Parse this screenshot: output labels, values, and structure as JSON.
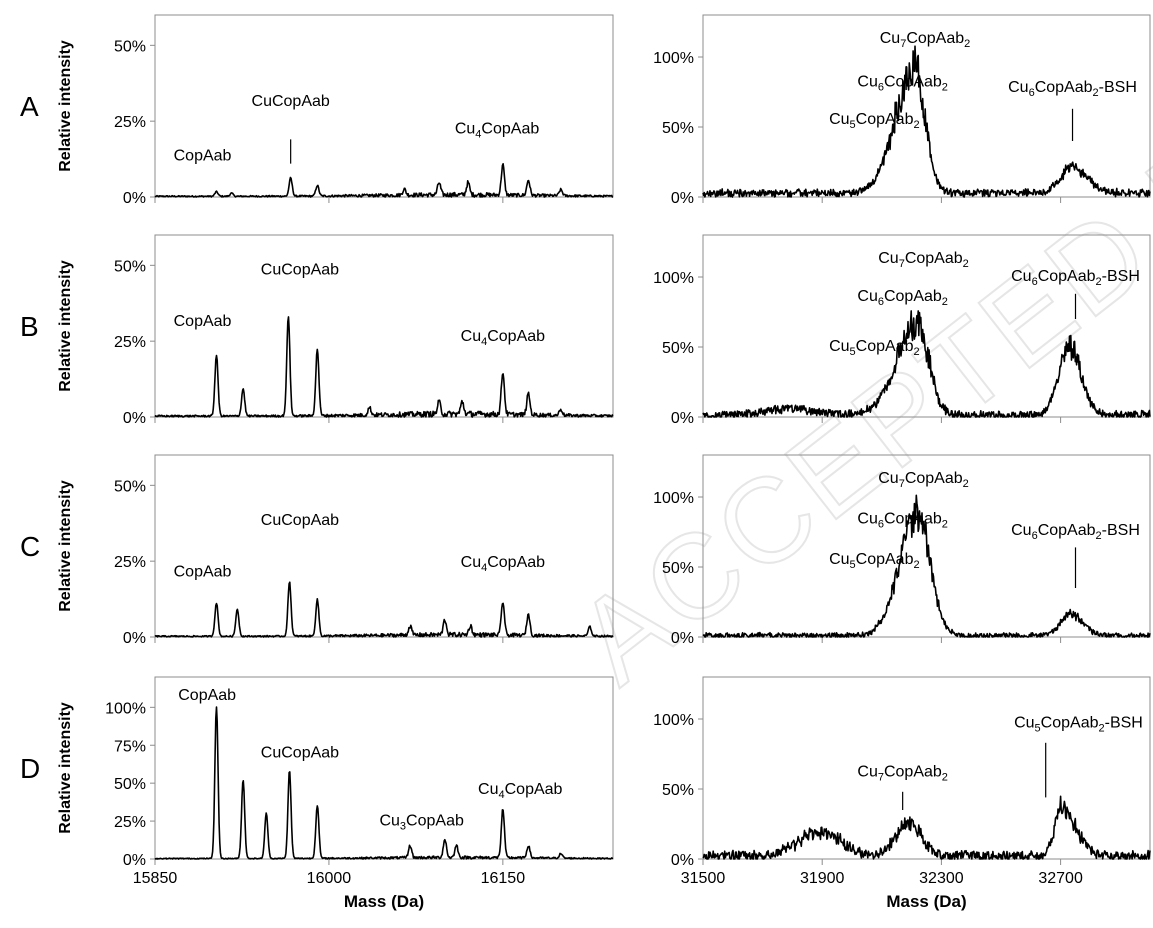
{
  "watermark": "ACCEPTED MANUSCRIPT",
  "y_axis_label": "Relative intensity",
  "x_axis_label": "Mass (Da)",
  "chart_data": [
    {
      "type": "line",
      "panel": "A",
      "side": "left",
      "xlim": [
        15850,
        16245
      ],
      "ylim": [
        0,
        60
      ],
      "yticks": [
        0,
        25,
        50
      ],
      "ytick_labels": [
        "0%",
        "25%",
        "50%"
      ],
      "xticks": [
        15850,
        16000,
        16150
      ],
      "peaks": [
        [
          15903,
          1.5
        ],
        [
          15916,
          1
        ],
        [
          15967,
          6
        ],
        [
          15990,
          3.5
        ],
        [
          16065,
          2
        ],
        [
          16095,
          4
        ],
        [
          16120,
          4
        ],
        [
          16150,
          10
        ],
        [
          16172,
          5
        ],
        [
          16200,
          2
        ]
      ],
      "noise": 1.5,
      "annotations": [
        {
          "text": "CopAab",
          "sub": "",
          "text2": "",
          "x": 15891,
          "y": 12,
          "leader": false
        },
        {
          "text": "CuCopAab",
          "sub": "",
          "text2": "",
          "x": 15967,
          "y": 30,
          "leader": true,
          "ly1": 19,
          "ly2": 11
        },
        {
          "text": "Cu",
          "sub": "4",
          "text2": "CopAab",
          "x": 16145,
          "y": 21,
          "leader": false
        }
      ]
    },
    {
      "type": "line",
      "panel": "A",
      "side": "right",
      "xlim": [
        31500,
        33000
      ],
      "ylim": [
        0,
        130
      ],
      "yticks": [
        0,
        50,
        100
      ],
      "ytick_labels": [
        "0%",
        "50%",
        "100%"
      ],
      "xticks": [
        31500,
        31900,
        32300,
        32700
      ],
      "envelopes": [
        [
          32210,
          105,
          90,
          50
        ],
        [
          32740,
          22,
          55,
          70
        ]
      ],
      "noise": 7,
      "baseline": 4,
      "annotations": [
        {
          "text": "Cu",
          "sub": "7",
          "text2": "CopAab",
          "sub2": "2",
          "x": 32245,
          "y": 110,
          "leader": false
        },
        {
          "text": "Cu",
          "sub": "6",
          "text2": "CopAab",
          "sub2": "2",
          "x": 32170,
          "y": 79,
          "leader": false
        },
        {
          "text": "Cu",
          "sub": "5",
          "text2": "CopAab",
          "sub2": "2",
          "x": 32075,
          "y": 52,
          "leader": false
        },
        {
          "text": "Cu",
          "sub": "6",
          "text2": "CopAab",
          "sub2": "2",
          "text3": "-BSH",
          "x": 32740,
          "y": 75,
          "leader": true,
          "ly1": 63,
          "ly2": 40
        }
      ]
    },
    {
      "type": "line",
      "panel": "B",
      "side": "left",
      "xlim": [
        15850,
        16245
      ],
      "ylim": [
        0,
        60
      ],
      "yticks": [
        0,
        25,
        50
      ],
      "ytick_labels": [
        "0%",
        "25%",
        "50%"
      ],
      "xticks": [
        15850,
        16000,
        16150
      ],
      "peaks": [
        [
          15903,
          20
        ],
        [
          15926,
          9
        ],
        [
          15965,
          33
        ],
        [
          15990,
          22
        ],
        [
          16035,
          2.5
        ],
        [
          16095,
          4
        ],
        [
          16115,
          4
        ],
        [
          16150,
          14
        ],
        [
          16172,
          7
        ],
        [
          16200,
          2
        ]
      ],
      "noise": 2,
      "annotations": [
        {
          "text": "CopAab",
          "sub": "",
          "text2": "",
          "x": 15891,
          "y": 30,
          "leader": false
        },
        {
          "text": "CuCopAab",
          "sub": "",
          "text2": "",
          "x": 15975,
          "y": 47,
          "leader": false
        },
        {
          "text": "Cu",
          "sub": "4",
          "text2": "CopAab",
          "x": 16150,
          "y": 25,
          "leader": false
        }
      ]
    },
    {
      "type": "line",
      "panel": "B",
      "side": "right",
      "xlim": [
        31500,
        33000
      ],
      "ylim": [
        0,
        130
      ],
      "yticks": [
        0,
        50,
        100
      ],
      "ytick_labels": [
        "0%",
        "50%",
        "100%"
      ],
      "xticks": [
        31500,
        31900,
        32300,
        32700
      ],
      "envelopes": [
        [
          32220,
          75,
          100,
          55
        ],
        [
          32730,
          58,
          50,
          55
        ],
        [
          31800,
          5,
          120,
          120
        ]
      ],
      "noise": 9,
      "baseline": 2,
      "annotations": [
        {
          "text": "Cu",
          "sub": "7",
          "text2": "CopAab",
          "sub2": "2",
          "x": 32240,
          "y": 110,
          "leader": false
        },
        {
          "text": "Cu",
          "sub": "6",
          "text2": "CopAab",
          "sub2": "2",
          "x": 32170,
          "y": 83,
          "leader": false
        },
        {
          "text": "Cu",
          "sub": "5",
          "text2": "CopAab",
          "sub2": "2",
          "x": 32075,
          "y": 47,
          "leader": false
        },
        {
          "text": "Cu",
          "sub": "6",
          "text2": "CopAab",
          "sub2": "2",
          "text3": "-BSH",
          "x": 32750,
          "y": 97,
          "leader": true,
          "ly1": 88,
          "ly2": 70
        }
      ]
    },
    {
      "type": "line",
      "panel": "C",
      "side": "left",
      "xlim": [
        15850,
        16245
      ],
      "ylim": [
        0,
        60
      ],
      "yticks": [
        0,
        25,
        50
      ],
      "ytick_labels": [
        "0%",
        "25%",
        "50%"
      ],
      "xticks": [
        15850,
        16000,
        16150
      ],
      "peaks": [
        [
          15903,
          11
        ],
        [
          15921,
          9
        ],
        [
          15966,
          18
        ],
        [
          15990,
          12
        ],
        [
          16070,
          3
        ],
        [
          16100,
          5
        ],
        [
          16122,
          3
        ],
        [
          16150,
          11
        ],
        [
          16172,
          7
        ],
        [
          16225,
          3
        ]
      ],
      "noise": 1.5,
      "annotations": [
        {
          "text": "CopAab",
          "sub": "",
          "text2": "",
          "x": 15891,
          "y": 20,
          "leader": false
        },
        {
          "text": "CuCopAab",
          "sub": "",
          "text2": "",
          "x": 15975,
          "y": 37,
          "leader": false
        },
        {
          "text": "Cu",
          "sub": "4",
          "text2": "CopAab",
          "x": 16150,
          "y": 23,
          "leader": false
        }
      ]
    },
    {
      "type": "line",
      "panel": "C",
      "side": "right",
      "xlim": [
        31500,
        33000
      ],
      "ylim": [
        0,
        130
      ],
      "yticks": [
        0,
        50,
        100
      ],
      "ytick_labels": [
        "0%",
        "50%",
        "100%"
      ],
      "xticks": [
        31500,
        31900,
        32300,
        32700
      ],
      "envelopes": [
        [
          32220,
          100,
          85,
          60
        ],
        [
          32730,
          18,
          45,
          60
        ]
      ],
      "noise": 6,
      "baseline": 1.5,
      "annotations": [
        {
          "text": "Cu",
          "sub": "7",
          "text2": "CopAab",
          "sub2": "2",
          "x": 32240,
          "y": 110,
          "leader": false
        },
        {
          "text": "Cu",
          "sub": "6",
          "text2": "CopAab",
          "sub2": "2",
          "x": 32170,
          "y": 81,
          "leader": false
        },
        {
          "text": "Cu",
          "sub": "5",
          "text2": "CopAab",
          "sub2": "2",
          "x": 32075,
          "y": 52,
          "leader": false
        },
        {
          "text": "Cu",
          "sub": "6",
          "text2": "CopAab",
          "sub2": "2",
          "text3": "-BSH",
          "x": 32750,
          "y": 73,
          "leader": true,
          "ly1": 64,
          "ly2": 35
        }
      ]
    },
    {
      "type": "line",
      "panel": "D",
      "side": "left",
      "xlim": [
        15850,
        16245
      ],
      "ylim": [
        0,
        120
      ],
      "yticks": [
        0,
        25,
        50,
        75,
        100
      ],
      "ytick_labels": [
        "0%",
        "25%",
        "50%",
        "75%",
        "100%"
      ],
      "xticks": [
        15850,
        16000,
        16150
      ],
      "xtick_labels": [
        "15850",
        "16000",
        "16150"
      ],
      "peaks": [
        [
          15903,
          100
        ],
        [
          15926,
          52
        ],
        [
          15946,
          30
        ],
        [
          15966,
          58
        ],
        [
          15990,
          35
        ],
        [
          16070,
          8
        ],
        [
          16100,
          12
        ],
        [
          16110,
          8
        ],
        [
          16150,
          32
        ],
        [
          16172,
          8
        ],
        [
          16200,
          3
        ]
      ],
      "noise": 2,
      "annotations": [
        {
          "text": "CopAab",
          "sub": "",
          "text2": "",
          "x": 15895,
          "y": 105,
          "leader": false
        },
        {
          "text": "CuCopAab",
          "sub": "",
          "text2": "",
          "x": 15975,
          "y": 67,
          "leader": false
        },
        {
          "text": "Cu",
          "sub": "3",
          "text2": "CopAab",
          "x": 16080,
          "y": 22,
          "leader": false
        },
        {
          "text": "Cu",
          "sub": "4",
          "text2": "CopAab",
          "x": 16165,
          "y": 43,
          "leader": false
        }
      ]
    },
    {
      "type": "line",
      "panel": "D",
      "side": "right",
      "xlim": [
        31500,
        33000
      ],
      "ylim": [
        0,
        130
      ],
      "yticks": [
        0,
        50,
        100
      ],
      "ytick_labels": [
        "0%",
        "50%",
        "100%"
      ],
      "xticks": [
        31500,
        31900,
        32300,
        32700
      ],
      "xtick_labels": [
        "31500",
        "31900",
        "32300",
        "32700"
      ],
      "envelopes": [
        [
          31890,
          20,
          100,
          100
        ],
        [
          32190,
          28,
          60,
          60
        ],
        [
          32700,
          40,
          30,
          70
        ]
      ],
      "noise": 11,
      "baseline": 3,
      "annotations": [
        {
          "text": "Cu",
          "sub": "7",
          "text2": "CopAab",
          "sub2": "2",
          "x": 32170,
          "y": 59,
          "leader": true,
          "ly1": 48,
          "ly2": 35
        },
        {
          "text": "Cu",
          "sub": "5",
          "text2": "CopAab",
          "sub2": "2",
          "text3": "-BSH",
          "x": 32760,
          "y": 94,
          "leader": true,
          "ly1": 83,
          "ly2": 44,
          "lx": 32650
        }
      ]
    }
  ]
}
